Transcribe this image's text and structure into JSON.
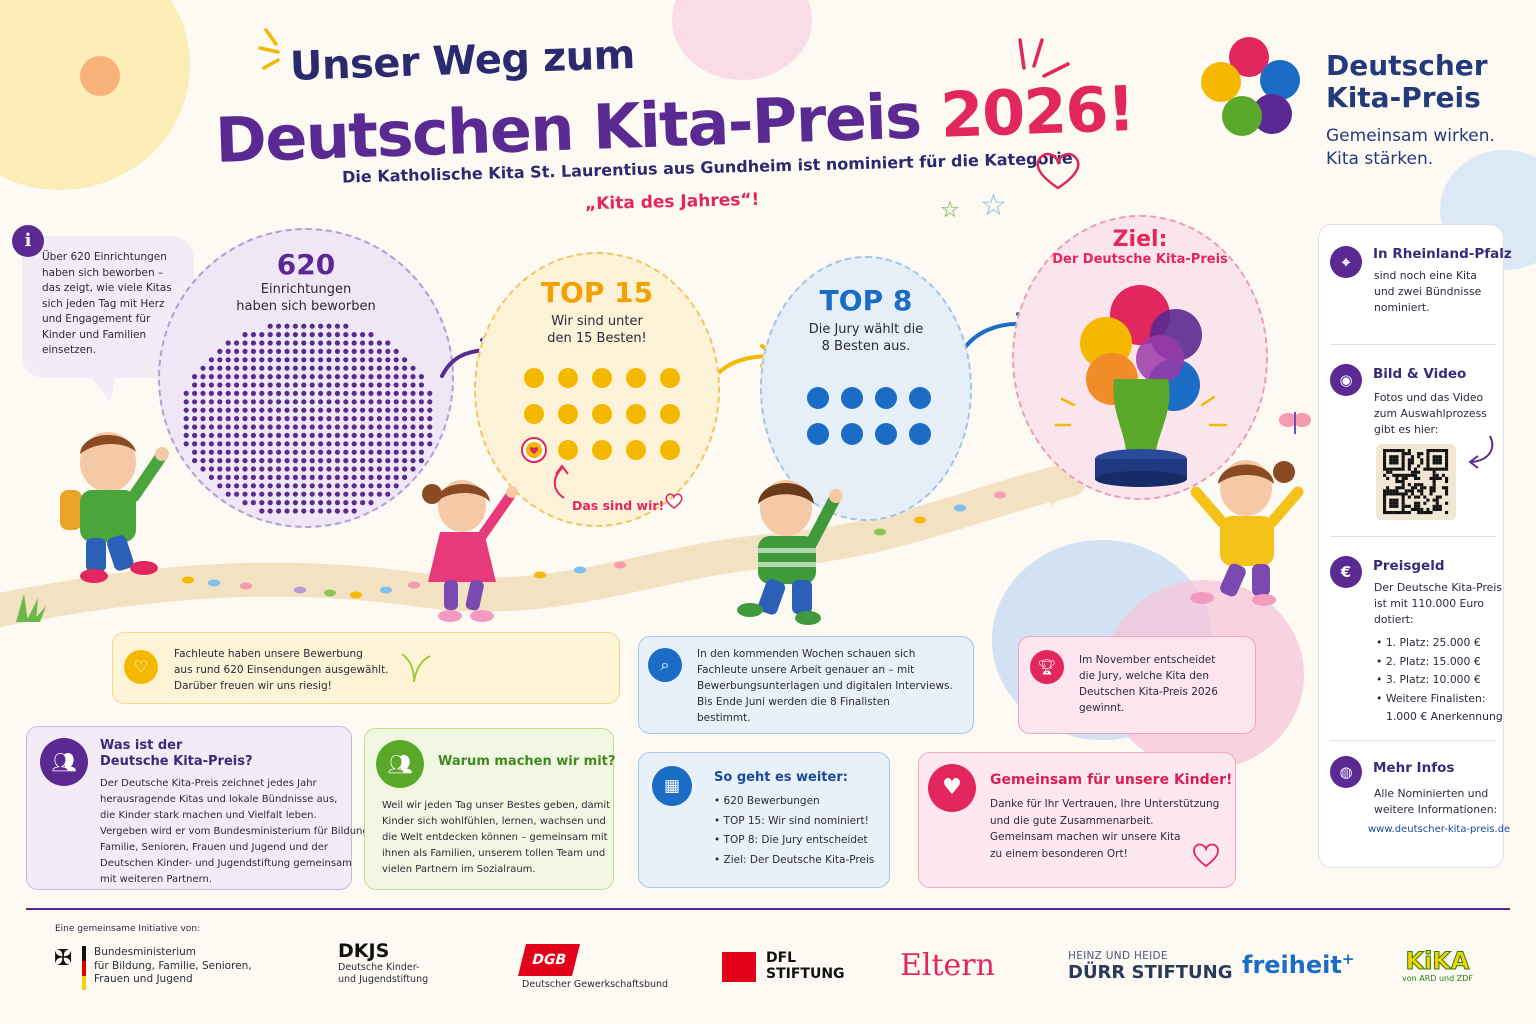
{
  "header": {
    "title_line1": "Unser Weg zum",
    "title_line2": "Deutschen Kita-Preis",
    "title_year": "2026",
    "title_exclaim": "!",
    "subtitle": "Die Katholische Kita St. Laurentius aus Gundheim ist nominiert für die Kategorie",
    "category": "„Kita des Jahres“!"
  },
  "brand": {
    "name_line1": "Deutscher",
    "name_line2": "Kita-Preis",
    "tagline_line1": "Gemeinsam wirken.",
    "tagline_line2": "Kita stärken."
  },
  "info_bubble": {
    "text": "Über 620 Einrichtungen haben sich beworben – das zeigt, wie viele Kitas sich jeden Tag mit Herz und Engagement für Kinder und Familien einsetzen."
  },
  "stages": {
    "s620": {
      "number": "620",
      "text_line1": "Einrichtungen",
      "text_line2": "haben sich beworben"
    },
    "s15": {
      "number": "TOP 15",
      "text_line1": "Wir sind unter",
      "text_line2": "den 15 Besten!",
      "callout": "Das sind wir!"
    },
    "s8": {
      "number": "TOP 8",
      "text_line1": "Die Jury wählt die",
      "text_line2": "8 Besten aus."
    },
    "goal": {
      "title": "Ziel:",
      "subtitle": "Der Deutsche Kita-Preis"
    }
  },
  "mid_cards": {
    "selection": {
      "line1": "Fachleute haben unsere Bewerbung",
      "line2": "aus rund 620 Einsendungen ausgewählt.",
      "line3": "Darüber freuen wir uns riesig!"
    },
    "review": {
      "line1": "In den kommenden Wochen schauen sich",
      "line2": "Fachleute unsere Arbeit genauer an – mit",
      "line3": "Bewerbungsunterlagen und digitalen Interviews.",
      "line4": "Bis Ende Juni werden die 8 Finalisten",
      "line5": "bestimmt."
    },
    "jury": {
      "line1": "Im November entscheidet",
      "line2": "die Jury, welche Kita den",
      "line3": "Deutschen Kita-Preis 2026",
      "line4": "gewinnt."
    }
  },
  "bottom_cards": {
    "what": {
      "title_line1": "Was ist der",
      "title_line2": "Deutsche Kita-Preis?",
      "lines": [
        "Der Deutsche Kita-Preis zeichnet jedes Jahr",
        "herausragende Kitas und lokale Bündnisse aus,",
        "die Kinder stark machen und Vielfalt leben.",
        "Vergeben wird er vom Bundesministerium für Bildung,",
        "Familie, Senioren, Frauen und Jugend und der",
        "Deutschen Kinder- und Jugendstiftung gemeinsam",
        "mit weiteren Partnern."
      ]
    },
    "why": {
      "title": "Warum machen wir mit?",
      "lines": [
        "Weil wir jeden Tag unser Bestes geben, damit",
        "Kinder sich wohlfühlen, lernen, wachsen und",
        "die Welt entdecken können – gemeinsam mit",
        "ihnen als Familien, unserem tollen Team und",
        "vielen Partnern im Sozialraum."
      ]
    },
    "next": {
      "title": "So geht es weiter:",
      "items": [
        "620 Bewerbungen",
        "TOP 15: Wir sind nominiert!",
        "TOP 8: Die Jury entscheidet",
        "Ziel: Der Deutsche Kita-Preis"
      ]
    },
    "together": {
      "title": "Gemeinsam für unsere Kinder!",
      "lines": [
        "Danke für Ihr Vertrauen, Ihre Unterstützung",
        "und die gute Zusammenarbeit.",
        "Gemeinsam machen wir unsere Kita",
        "zu einem besonderen Ort!"
      ]
    }
  },
  "sidebar": {
    "region": {
      "title": "In Rheinland-Pfalz",
      "lines": [
        "sind noch eine Kita",
        "und zwei Bündnisse",
        "nominiert."
      ]
    },
    "media": {
      "title": "Bild & Video",
      "lines": [
        "Fotos und das Video",
        "zum Auswahlprozess",
        "gibt es hier:"
      ]
    },
    "prize": {
      "title": "Preisgeld",
      "lines": [
        "Der Deutsche Kita-Preis",
        "ist mit 110.000 Euro",
        "dotiert:"
      ],
      "items": [
        "1. Platz: 25.000 €",
        "2. Platz: 15.000 €",
        "3. Platz: 10.000 €"
      ],
      "extra_line1": "Weitere Finalisten:",
      "extra_line2": "1.000 € Anerkennung"
    },
    "more": {
      "title": "Mehr Infos",
      "lines": [
        "Alle Nominierten und",
        "weitere Informationen:"
      ],
      "link": "www.deutscher-kita-preis.de"
    }
  },
  "footer": {
    "label": "Eine gemeinsame Initiative von:",
    "bmfsfj_lines": [
      "Bundesministerium",
      "für Bildung, Familie, Senioren,",
      "Frauen und Jugend"
    ],
    "dkjs_name": "DKJS",
    "dkjs_lines": [
      "Deutsche Kinder-",
      "und Jugendstiftung"
    ],
    "dgb_name": "DGB",
    "dgb_sub": "Deutscher Gewerkschaftsbund",
    "dfl_lines": [
      "DFL",
      "STIFTUNG"
    ],
    "eltern": "Eltern",
    "duerr_line1": "HEINZ UND HEIDE",
    "duerr_line2": "DÜRR STIFTUNG",
    "freiheit": "freiheit",
    "freiheit_plus": "+",
    "kika": "KiKA",
    "kika_sub": "von ARD und ZDF"
  },
  "colors": {
    "purple": "#5a2a92",
    "navy": "#2c2a6e",
    "pink": "#e2265e",
    "yellow": "#f5b800",
    "blue": "#1a6cc4",
    "green": "#5aa82a"
  },
  "icons": {
    "info": "info-icon",
    "heart": "heart-icon",
    "search": "magnifier-icon",
    "trophy": "trophy-icon",
    "people": "people-icon",
    "calendar": "calendar-icon",
    "location": "location-pin-icon",
    "camera": "camera-icon",
    "euro": "euro-icon",
    "globe": "globe-icon"
  }
}
